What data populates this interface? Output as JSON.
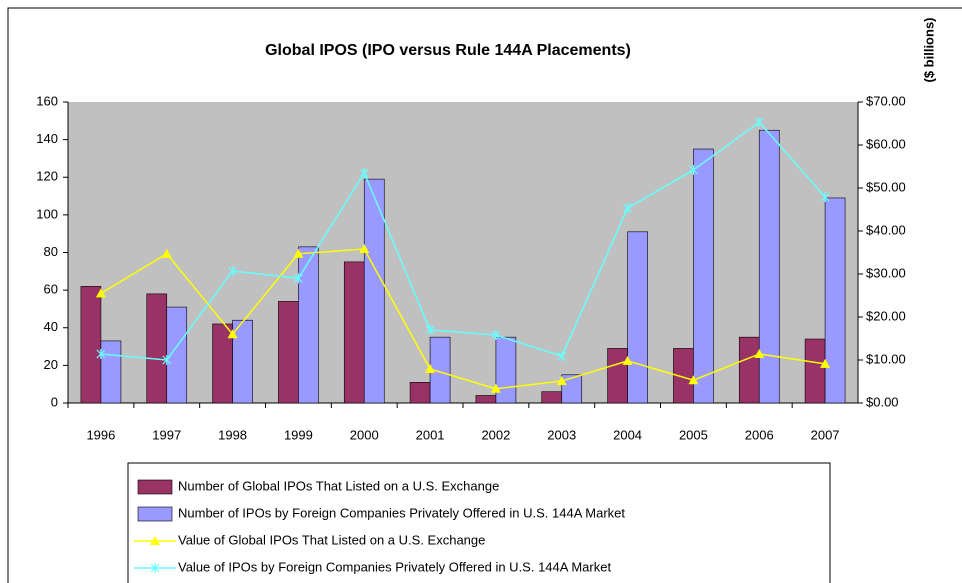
{
  "chart_data": {
    "type": "bar",
    "title": "Global IPOS (IPO versus Rule 144A Placements)",
    "y2_label": "($ billions)",
    "categories": [
      "1996",
      "1997",
      "1998",
      "1999",
      "2000",
      "2001",
      "2002",
      "2003",
      "2004",
      "2005",
      "2006",
      "2007"
    ],
    "series": [
      {
        "name": "Number of Global IPOs That Listed on a U.S. Exchange",
        "type": "bar",
        "color": "#993366",
        "values": [
          62,
          58,
          42,
          54,
          75,
          11,
          4,
          6,
          29,
          29,
          35,
          34
        ]
      },
      {
        "name": "Number of IPOs by Foreign Companies Privately Offered in U.S. 144A Market",
        "type": "bar",
        "color": "#9999ff",
        "values": [
          33,
          51,
          44,
          83,
          119,
          35,
          35,
          15,
          91,
          135,
          145,
          109
        ]
      },
      {
        "name": "Value of Global IPOs That Listed on a U.S. Exchange",
        "type": "line",
        "axis": "y2",
        "color": "#ffff00",
        "marker": "triangle",
        "values": [
          25.5,
          34.7,
          16,
          34.7,
          35.8,
          7.9,
          3.3,
          5.1,
          9.8,
          5.3,
          11.4,
          9.1
        ]
      },
      {
        "name": "Value of IPOs by Foreign Companies Privately Offered in U.S. 144A Market",
        "type": "line",
        "axis": "y2",
        "color": "#66ffff",
        "marker": "star",
        "values": [
          11.4,
          10,
          30.7,
          29,
          53.5,
          17,
          15.8,
          10.9,
          45.3,
          54.2,
          65.3,
          47.9
        ]
      }
    ],
    "ylim": [
      0,
      160
    ],
    "yticks": [
      0,
      20,
      40,
      60,
      80,
      100,
      120,
      140,
      160
    ],
    "y2lim": [
      0,
      70
    ],
    "y2ticks": [
      {
        "value": 0,
        "label": "$0.00"
      },
      {
        "value": 10,
        "label": "$10.00"
      },
      {
        "value": 20,
        "label": "$20.00"
      },
      {
        "value": 30,
        "label": "$30.00"
      },
      {
        "value": 40,
        "label": "$40.00"
      },
      {
        "value": 50,
        "label": "$50.00"
      },
      {
        "value": 60,
        "label": "$60.00"
      },
      {
        "value": 70,
        "label": "$70.00"
      }
    ],
    "plot_background": "#c0c0c0",
    "legend": "bottom"
  }
}
